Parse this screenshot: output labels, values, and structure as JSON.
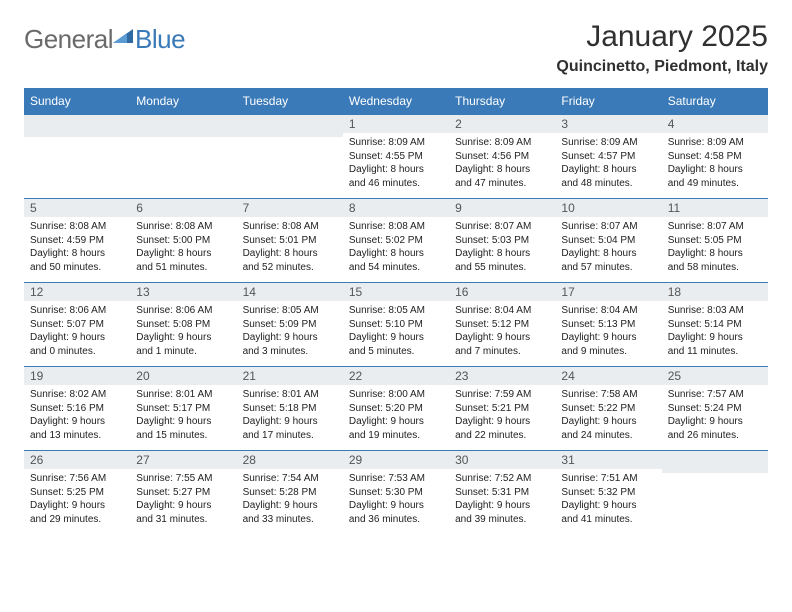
{
  "brand": {
    "part1": "General",
    "part2": "Blue"
  },
  "title": "January 2025",
  "location": "Quincinetto, Piedmont, Italy",
  "colors": {
    "header_bg": "#3a7ab8",
    "header_text": "#ffffff",
    "daynum_bg": "#e9edf0",
    "row_border": "#3a7ab8",
    "text": "#222222",
    "title_color": "#303030",
    "logo_gray": "#6a6a6a",
    "logo_blue": "#3a7ab8",
    "background": "#ffffff"
  },
  "typography": {
    "title_fontsize": 30,
    "location_fontsize": 16,
    "dow_fontsize": 12,
    "daynum_fontsize": 12,
    "info_fontsize": 10
  },
  "days_of_week": [
    "Sunday",
    "Monday",
    "Tuesday",
    "Wednesday",
    "Thursday",
    "Friday",
    "Saturday"
  ],
  "weeks": [
    [
      null,
      null,
      null,
      {
        "n": "1",
        "sr": "8:09 AM",
        "ss": "4:55 PM",
        "dl": "8 hours and 46 minutes."
      },
      {
        "n": "2",
        "sr": "8:09 AM",
        "ss": "4:56 PM",
        "dl": "8 hours and 47 minutes."
      },
      {
        "n": "3",
        "sr": "8:09 AM",
        "ss": "4:57 PM",
        "dl": "8 hours and 48 minutes."
      },
      {
        "n": "4",
        "sr": "8:09 AM",
        "ss": "4:58 PM",
        "dl": "8 hours and 49 minutes."
      }
    ],
    [
      {
        "n": "5",
        "sr": "8:08 AM",
        "ss": "4:59 PM",
        "dl": "8 hours and 50 minutes."
      },
      {
        "n": "6",
        "sr": "8:08 AM",
        "ss": "5:00 PM",
        "dl": "8 hours and 51 minutes."
      },
      {
        "n": "7",
        "sr": "8:08 AM",
        "ss": "5:01 PM",
        "dl": "8 hours and 52 minutes."
      },
      {
        "n": "8",
        "sr": "8:08 AM",
        "ss": "5:02 PM",
        "dl": "8 hours and 54 minutes."
      },
      {
        "n": "9",
        "sr": "8:07 AM",
        "ss": "5:03 PM",
        "dl": "8 hours and 55 minutes."
      },
      {
        "n": "10",
        "sr": "8:07 AM",
        "ss": "5:04 PM",
        "dl": "8 hours and 57 minutes."
      },
      {
        "n": "11",
        "sr": "8:07 AM",
        "ss": "5:05 PM",
        "dl": "8 hours and 58 minutes."
      }
    ],
    [
      {
        "n": "12",
        "sr": "8:06 AM",
        "ss": "5:07 PM",
        "dl": "9 hours and 0 minutes."
      },
      {
        "n": "13",
        "sr": "8:06 AM",
        "ss": "5:08 PM",
        "dl": "9 hours and 1 minute."
      },
      {
        "n": "14",
        "sr": "8:05 AM",
        "ss": "5:09 PM",
        "dl": "9 hours and 3 minutes."
      },
      {
        "n": "15",
        "sr": "8:05 AM",
        "ss": "5:10 PM",
        "dl": "9 hours and 5 minutes."
      },
      {
        "n": "16",
        "sr": "8:04 AM",
        "ss": "5:12 PM",
        "dl": "9 hours and 7 minutes."
      },
      {
        "n": "17",
        "sr": "8:04 AM",
        "ss": "5:13 PM",
        "dl": "9 hours and 9 minutes."
      },
      {
        "n": "18",
        "sr": "8:03 AM",
        "ss": "5:14 PM",
        "dl": "9 hours and 11 minutes."
      }
    ],
    [
      {
        "n": "19",
        "sr": "8:02 AM",
        "ss": "5:16 PM",
        "dl": "9 hours and 13 minutes."
      },
      {
        "n": "20",
        "sr": "8:01 AM",
        "ss": "5:17 PM",
        "dl": "9 hours and 15 minutes."
      },
      {
        "n": "21",
        "sr": "8:01 AM",
        "ss": "5:18 PM",
        "dl": "9 hours and 17 minutes."
      },
      {
        "n": "22",
        "sr": "8:00 AM",
        "ss": "5:20 PM",
        "dl": "9 hours and 19 minutes."
      },
      {
        "n": "23",
        "sr": "7:59 AM",
        "ss": "5:21 PM",
        "dl": "9 hours and 22 minutes."
      },
      {
        "n": "24",
        "sr": "7:58 AM",
        "ss": "5:22 PM",
        "dl": "9 hours and 24 minutes."
      },
      {
        "n": "25",
        "sr": "7:57 AM",
        "ss": "5:24 PM",
        "dl": "9 hours and 26 minutes."
      }
    ],
    [
      {
        "n": "26",
        "sr": "7:56 AM",
        "ss": "5:25 PM",
        "dl": "9 hours and 29 minutes."
      },
      {
        "n": "27",
        "sr": "7:55 AM",
        "ss": "5:27 PM",
        "dl": "9 hours and 31 minutes."
      },
      {
        "n": "28",
        "sr": "7:54 AM",
        "ss": "5:28 PM",
        "dl": "9 hours and 33 minutes."
      },
      {
        "n": "29",
        "sr": "7:53 AM",
        "ss": "5:30 PM",
        "dl": "9 hours and 36 minutes."
      },
      {
        "n": "30",
        "sr": "7:52 AM",
        "ss": "5:31 PM",
        "dl": "9 hours and 39 minutes."
      },
      {
        "n": "31",
        "sr": "7:51 AM",
        "ss": "5:32 PM",
        "dl": "9 hours and 41 minutes."
      },
      null
    ]
  ],
  "labels": {
    "sunrise": "Sunrise: ",
    "sunset": "Sunset: ",
    "daylight": "Daylight: "
  }
}
